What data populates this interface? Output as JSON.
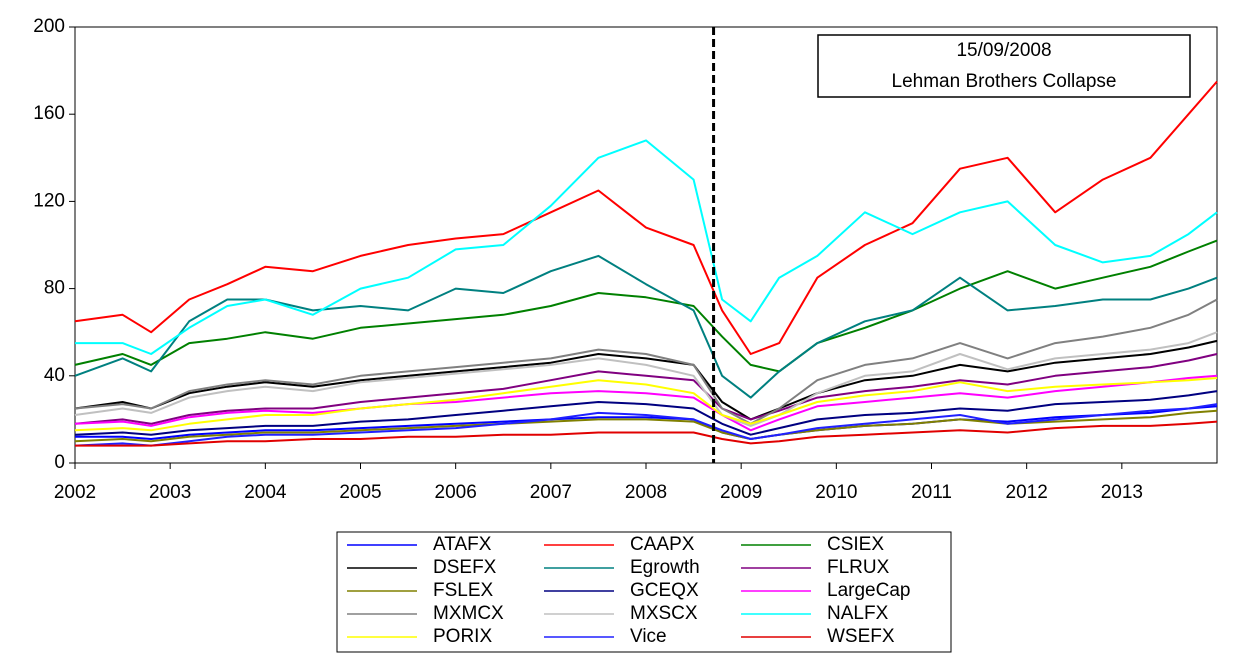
{
  "chart_data": {
    "type": "line",
    "x": [
      2002.0,
      2002.5,
      2002.8,
      2003.2,
      2003.6,
      2004.0,
      2004.5,
      2005.0,
      2005.5,
      2006.0,
      2006.5,
      2007.0,
      2007.5,
      2008.0,
      2008.5,
      2008.8,
      2009.1,
      2009.4,
      2009.8,
      2010.3,
      2010.8,
      2011.3,
      2011.8,
      2012.3,
      2012.8,
      2013.3,
      2013.7,
      2014.0
    ],
    "xlim": [
      2002,
      2014
    ],
    "xticks": [
      2002,
      2003,
      2004,
      2005,
      2006,
      2007,
      2008,
      2009,
      2010,
      2011,
      2012,
      2013
    ],
    "ylim": [
      0,
      200
    ],
    "yticks": [
      0,
      40,
      80,
      120,
      160,
      200
    ],
    "grid": false,
    "vline": 2008.71,
    "annotation": [
      "15/09/2008",
      "Lehman Brothers Collapse"
    ],
    "series": [
      {
        "name": "ATAFX",
        "color": "#0000ff",
        "values": [
          12,
          12,
          11,
          13,
          14,
          15,
          15,
          16,
          17,
          18,
          19,
          20,
          21,
          21,
          20,
          14,
          11,
          13,
          15,
          17,
          18,
          20,
          19,
          21,
          22,
          23,
          25,
          26
        ]
      },
      {
        "name": "CAAPX",
        "color": "#ff0000",
        "values": [
          65,
          68,
          60,
          75,
          82,
          90,
          88,
          95,
          100,
          103,
          105,
          115,
          125,
          108,
          100,
          70,
          50,
          55,
          85,
          100,
          110,
          135,
          140,
          115,
          130,
          140,
          160,
          175
        ]
      },
      {
        "name": "CSIEX",
        "color": "#008000",
        "values": [
          45,
          50,
          45,
          55,
          57,
          60,
          57,
          62,
          64,
          66,
          68,
          72,
          78,
          76,
          72,
          58,
          45,
          42,
          55,
          62,
          70,
          80,
          88,
          80,
          85,
          90,
          97,
          102
        ]
      },
      {
        "name": "DSEFX",
        "color": "#000000",
        "values": [
          25,
          28,
          25,
          32,
          35,
          37,
          35,
          38,
          40,
          42,
          44,
          46,
          50,
          48,
          45,
          28,
          20,
          25,
          32,
          38,
          40,
          45,
          42,
          46,
          48,
          50,
          53,
          56
        ]
      },
      {
        "name": "Egrowth",
        "color": "#008080",
        "values": [
          40,
          48,
          42,
          65,
          75,
          75,
          70,
          72,
          70,
          80,
          78,
          88,
          95,
          82,
          70,
          40,
          30,
          42,
          55,
          65,
          70,
          85,
          70,
          72,
          75,
          75,
          80,
          85
        ]
      },
      {
        "name": "FLRUX",
        "color": "#800080",
        "values": [
          18,
          20,
          18,
          22,
          24,
          25,
          25,
          28,
          30,
          32,
          34,
          38,
          42,
          40,
          38,
          25,
          20,
          24,
          30,
          33,
          35,
          38,
          36,
          40,
          42,
          44,
          47,
          50
        ]
      },
      {
        "name": "FSLEX",
        "color": "#808000",
        "values": [
          10,
          11,
          10,
          12,
          13,
          14,
          14,
          15,
          16,
          17,
          18,
          19,
          20,
          20,
          19,
          14,
          11,
          13,
          15,
          17,
          18,
          20,
          18,
          19,
          20,
          21,
          23,
          24
        ]
      },
      {
        "name": "GCEQX",
        "color": "#000080",
        "values": [
          13,
          14,
          13,
          15,
          16,
          17,
          17,
          19,
          20,
          22,
          24,
          26,
          28,
          27,
          25,
          18,
          13,
          16,
          20,
          22,
          23,
          25,
          24,
          27,
          28,
          29,
          31,
          33
        ]
      },
      {
        "name": "LargeCap",
        "color": "#ff00ff",
        "values": [
          18,
          19,
          17,
          21,
          23,
          24,
          23,
          25,
          27,
          28,
          30,
          32,
          33,
          32,
          30,
          22,
          15,
          20,
          26,
          28,
          30,
          32,
          30,
          33,
          35,
          37,
          39,
          40
        ]
      },
      {
        "name": "MXMCX",
        "color": "#808080",
        "values": [
          25,
          27,
          25,
          33,
          36,
          38,
          36,
          40,
          42,
          44,
          46,
          48,
          52,
          50,
          45,
          25,
          18,
          25,
          38,
          45,
          48,
          55,
          48,
          55,
          58,
          62,
          68,
          75
        ]
      },
      {
        "name": "MXSCX",
        "color": "#c0c0c0",
        "values": [
          22,
          25,
          23,
          30,
          33,
          35,
          33,
          37,
          39,
          41,
          43,
          45,
          48,
          45,
          40,
          22,
          17,
          22,
          32,
          40,
          42,
          50,
          43,
          48,
          50,
          52,
          55,
          60
        ]
      },
      {
        "name": "NALFX",
        "color": "#00ffff",
        "values": [
          55,
          55,
          50,
          62,
          72,
          75,
          68,
          80,
          85,
          98,
          100,
          118,
          140,
          148,
          130,
          75,
          65,
          85,
          95,
          115,
          105,
          115,
          120,
          100,
          92,
          95,
          105,
          115
        ]
      },
      {
        "name": "PORIX",
        "color": "#ffff00",
        "values": [
          15,
          16,
          15,
          18,
          20,
          22,
          22,
          25,
          27,
          29,
          32,
          35,
          38,
          36,
          32,
          22,
          18,
          22,
          28,
          31,
          33,
          37,
          33,
          35,
          36,
          37,
          38,
          39
        ]
      },
      {
        "name": "Vice",
        "color": "#2020ff",
        "values": [
          8,
          9,
          8,
          10,
          12,
          13,
          13,
          14,
          15,
          16,
          18,
          20,
          23,
          22,
          20,
          15,
          11,
          13,
          16,
          18,
          20,
          22,
          18,
          20,
          22,
          24,
          25,
          27
        ]
      },
      {
        "name": "WSEFX",
        "color": "#e00000",
        "values": [
          8,
          8,
          8,
          9,
          10,
          10,
          11,
          11,
          12,
          12,
          13,
          13,
          14,
          14,
          14,
          11,
          9,
          10,
          12,
          13,
          14,
          15,
          14,
          16,
          17,
          17,
          18,
          19
        ]
      }
    ]
  }
}
